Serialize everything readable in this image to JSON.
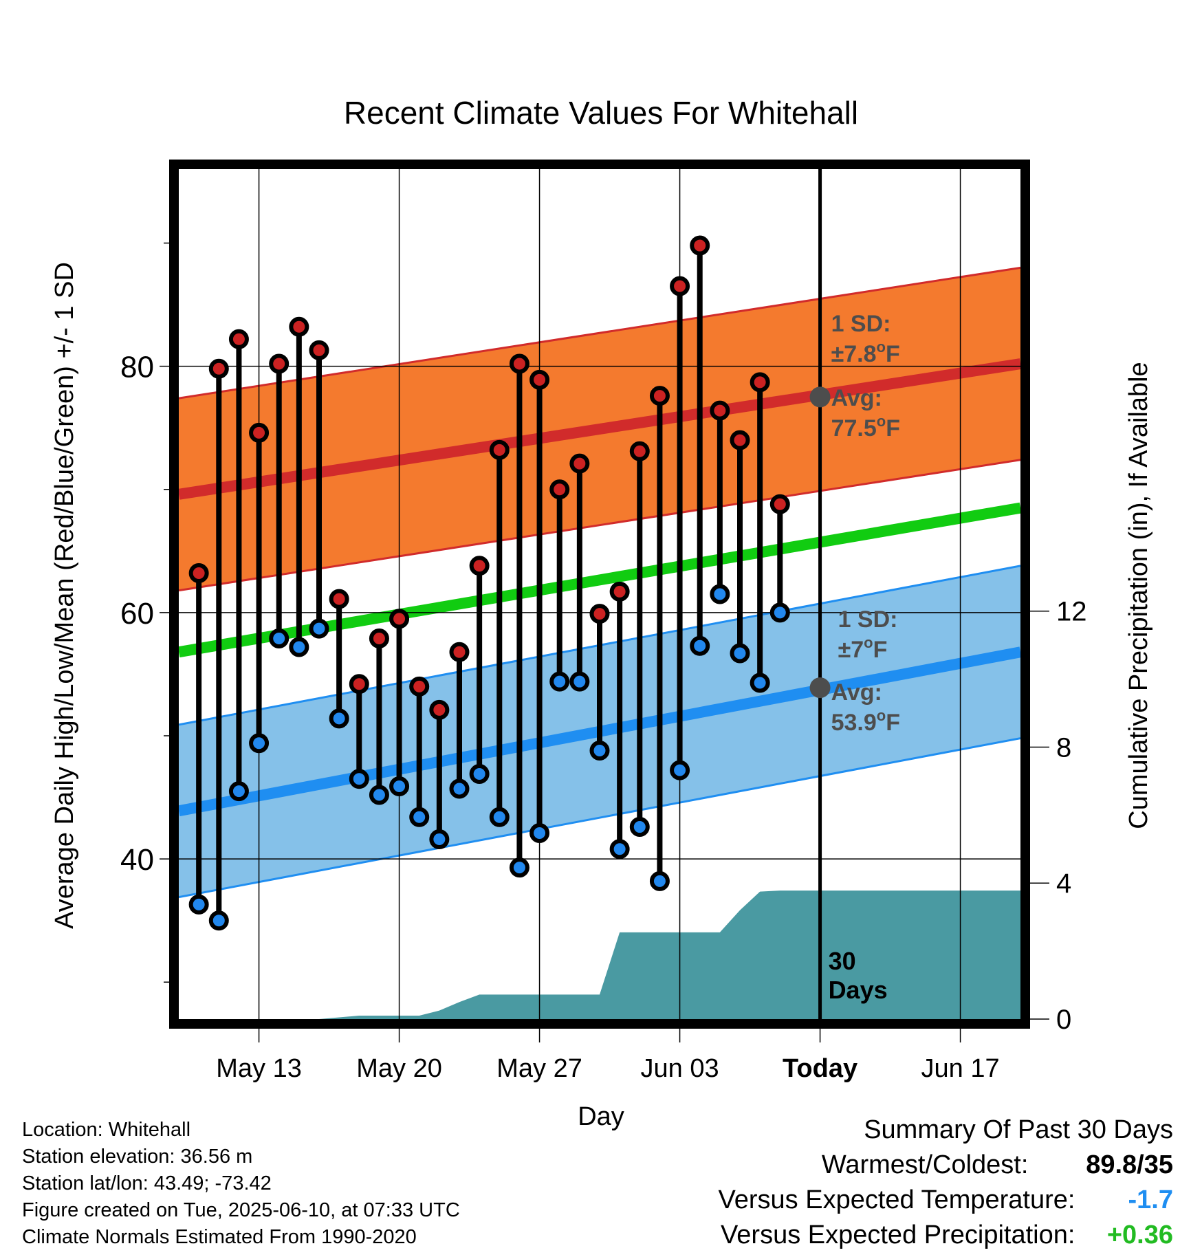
{
  "chart_data": {
    "type": "line",
    "title": "Recent Climate Values For Whitehall",
    "xlabel": "Day",
    "ylabel": "Average Daily High/Low/Mean (Red/Blue/Green) +/- 1 SD",
    "y2label": "Cumulative Precipitation (in), If Available",
    "x_range": [
      "2025-05-09",
      "2025-06-20"
    ],
    "ylim": [
      27,
      96
    ],
    "y2lim": [
      0,
      25
    ],
    "y_ticks": [
      40,
      60,
      80
    ],
    "y2_ticks": [
      0,
      4,
      8,
      12
    ],
    "x_ticks": [
      {
        "date": "2025-05-13",
        "label": "May 13"
      },
      {
        "date": "2025-05-20",
        "label": "May 20"
      },
      {
        "date": "2025-05-27",
        "label": "May 27"
      },
      {
        "date": "2025-06-03",
        "label": "Jun 03"
      },
      {
        "date": "2025-06-10",
        "label": "Today"
      },
      {
        "date": "2025-06-17",
        "label": "Jun 17"
      }
    ],
    "grid": true,
    "today": "2025-06-10",
    "today_label": [
      "30",
      "Days"
    ],
    "series": [
      {
        "name": "High",
        "dates": [
          "2025-05-10",
          "2025-05-11",
          "2025-05-12",
          "2025-05-13",
          "2025-05-14",
          "2025-05-15",
          "2025-05-16",
          "2025-05-17",
          "2025-05-18",
          "2025-05-19",
          "2025-05-20",
          "2025-05-21",
          "2025-05-22",
          "2025-05-23",
          "2025-05-24",
          "2025-05-25",
          "2025-05-26",
          "2025-05-27",
          "2025-05-28",
          "2025-05-29",
          "2025-05-30",
          "2025-05-31",
          "2025-06-01",
          "2025-06-02",
          "2025-06-03",
          "2025-06-04",
          "2025-06-05",
          "2025-06-06",
          "2025-06-07",
          "2025-06-08",
          "2025-06-09"
        ],
        "values": [
          63.2,
          79.8,
          82.2,
          74.6,
          80.2,
          83.2,
          81.3,
          61.1,
          54.2,
          57.9,
          59.5,
          54.0,
          52.1,
          56.8,
          63.8,
          73.2,
          80.2,
          78.9,
          70.0,
          72.1,
          59.9,
          61.7,
          73.1,
          77.6,
          86.5,
          89.8,
          76.4,
          74.0,
          78.7,
          68.8,
          null
        ]
      },
      {
        "name": "Low",
        "dates": [
          "2025-05-10",
          "2025-05-11",
          "2025-05-12",
          "2025-05-13",
          "2025-05-14",
          "2025-05-15",
          "2025-05-16",
          "2025-05-17",
          "2025-05-18",
          "2025-05-19",
          "2025-05-20",
          "2025-05-21",
          "2025-05-22",
          "2025-05-23",
          "2025-05-24",
          "2025-05-25",
          "2025-05-26",
          "2025-05-27",
          "2025-05-28",
          "2025-05-29",
          "2025-05-30",
          "2025-05-31",
          "2025-06-01",
          "2025-06-02",
          "2025-06-03",
          "2025-06-04",
          "2025-06-05",
          "2025-06-06",
          "2025-06-07",
          "2025-06-08",
          "2025-06-09"
        ],
        "values": [
          36.3,
          35.0,
          45.5,
          49.4,
          57.9,
          57.2,
          58.7,
          51.4,
          46.5,
          45.2,
          45.9,
          43.4,
          41.6,
          45.7,
          46.9,
          43.4,
          39.3,
          42.1,
          54.4,
          54.4,
          48.8,
          40.8,
          42.6,
          38.2,
          47.2,
          57.3,
          61.5,
          56.7,
          54.3,
          60.0,
          null
        ]
      }
    ],
    "normals": {
      "dates": [
        "2025-05-09",
        "2025-06-20"
      ],
      "high_mean": [
        69.6,
        80.2
      ],
      "high_sd": 7.8,
      "low_mean": [
        43.9,
        56.8
      ],
      "low_sd": 7,
      "mean": [
        56.8,
        68.5
      ]
    },
    "annotations": {
      "high": {
        "sd_line1": "1 SD:",
        "sd_line2": "±7.8",
        "avg_line1": "Avg:",
        "avg_line2": "77.5",
        "unit": "F",
        "degree": "o",
        "value": 77.5
      },
      "low": {
        "sd_line1": "1 SD:",
        "sd_line2": "±7",
        "avg_line1": "Avg:",
        "avg_line2": "53.9",
        "unit": "F",
        "degree": "o",
        "value": 53.9
      }
    },
    "precipitation": {
      "dates": [
        "2025-05-09",
        "2025-05-15",
        "2025-05-16",
        "2025-05-17",
        "2025-05-18",
        "2025-05-21",
        "2025-05-22",
        "2025-05-23",
        "2025-05-24",
        "2025-05-30",
        "2025-05-31",
        "2025-06-04",
        "2025-06-05",
        "2025-06-06",
        "2025-06-07",
        "2025-06-08",
        "2025-06-20"
      ],
      "values": [
        0.0,
        0.0,
        0.0,
        0.05,
        0.1,
        0.1,
        0.25,
        0.5,
        0.72,
        0.72,
        2.55,
        2.55,
        2.55,
        3.2,
        3.75,
        3.78,
        3.78
      ]
    },
    "colors": {
      "high_band": "#f47a2e",
      "high_line": "#d12b2b",
      "low_band": "#85c1e9",
      "low_line": "#1f8ef1",
      "mean_line": "#11cc11",
      "precip": "#4a9aa2",
      "high_dot": "#cc2222",
      "low_dot": "#2288ee",
      "annotation": "#4d4d4d"
    }
  },
  "meta": {
    "location": "Location: Whitehall",
    "elevation": "Station elevation: 36.56 m",
    "latlon": "Station lat/lon: 43.49; -73.42",
    "created": "Figure created on Tue, 2025-06-10, at 07:33 UTC",
    "normals": "Climate Normals Estimated From 1990-2020"
  },
  "summary": {
    "title": "Summary Of Past 30 Days",
    "warmest_label": "Warmest/Coldest:",
    "warmest_value": "89.8/35",
    "temp_label": "Versus Expected Temperature:",
    "temp_value": "-1.7",
    "temp_color": "#1f8ef1",
    "precip_label": "Versus Expected Precipitation:",
    "precip_value": "+0.36",
    "precip_color": "#22bb22"
  }
}
